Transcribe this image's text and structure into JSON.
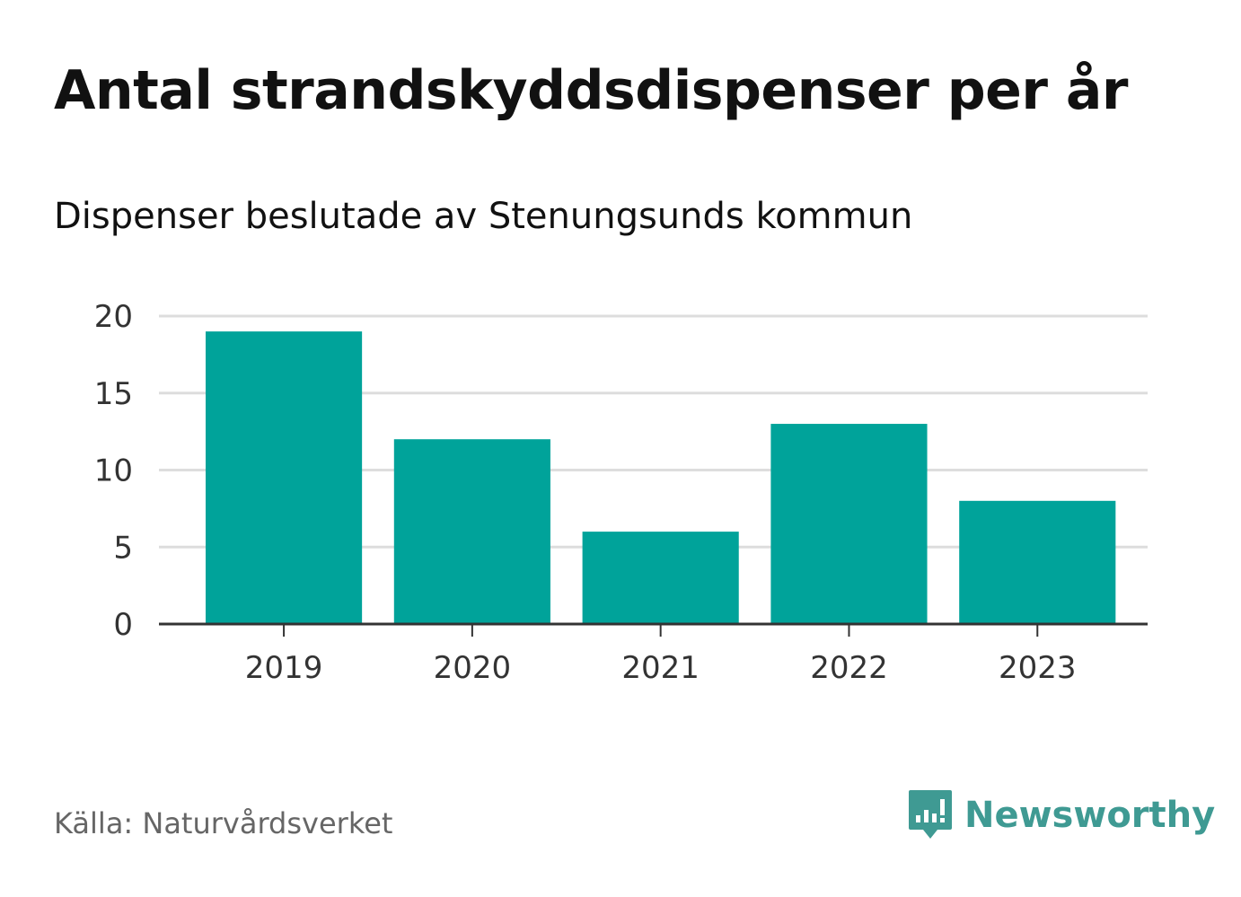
{
  "chart_data": {
    "type": "bar",
    "title": "Antal strandskyddsdispenser per år",
    "subtitle": "Dispenser beslutade av Stenungsunds kommun",
    "categories": [
      "2019",
      "2020",
      "2021",
      "2022",
      "2023"
    ],
    "values": [
      19,
      12,
      6,
      13,
      8
    ],
    "ylim": [
      0,
      20
    ],
    "yticks": [
      0,
      5,
      10,
      15,
      20
    ],
    "xlabel": "",
    "ylabel": "",
    "grid": true,
    "bar_color": "#00a39a"
  },
  "footer": {
    "source": "Källa: Naturvårdsverket",
    "brand": "Newsworthy"
  },
  "colors": {
    "bar": "#00a39a",
    "grid": "#dddddd",
    "axis": "#333333",
    "brand": "#3f9a93"
  }
}
